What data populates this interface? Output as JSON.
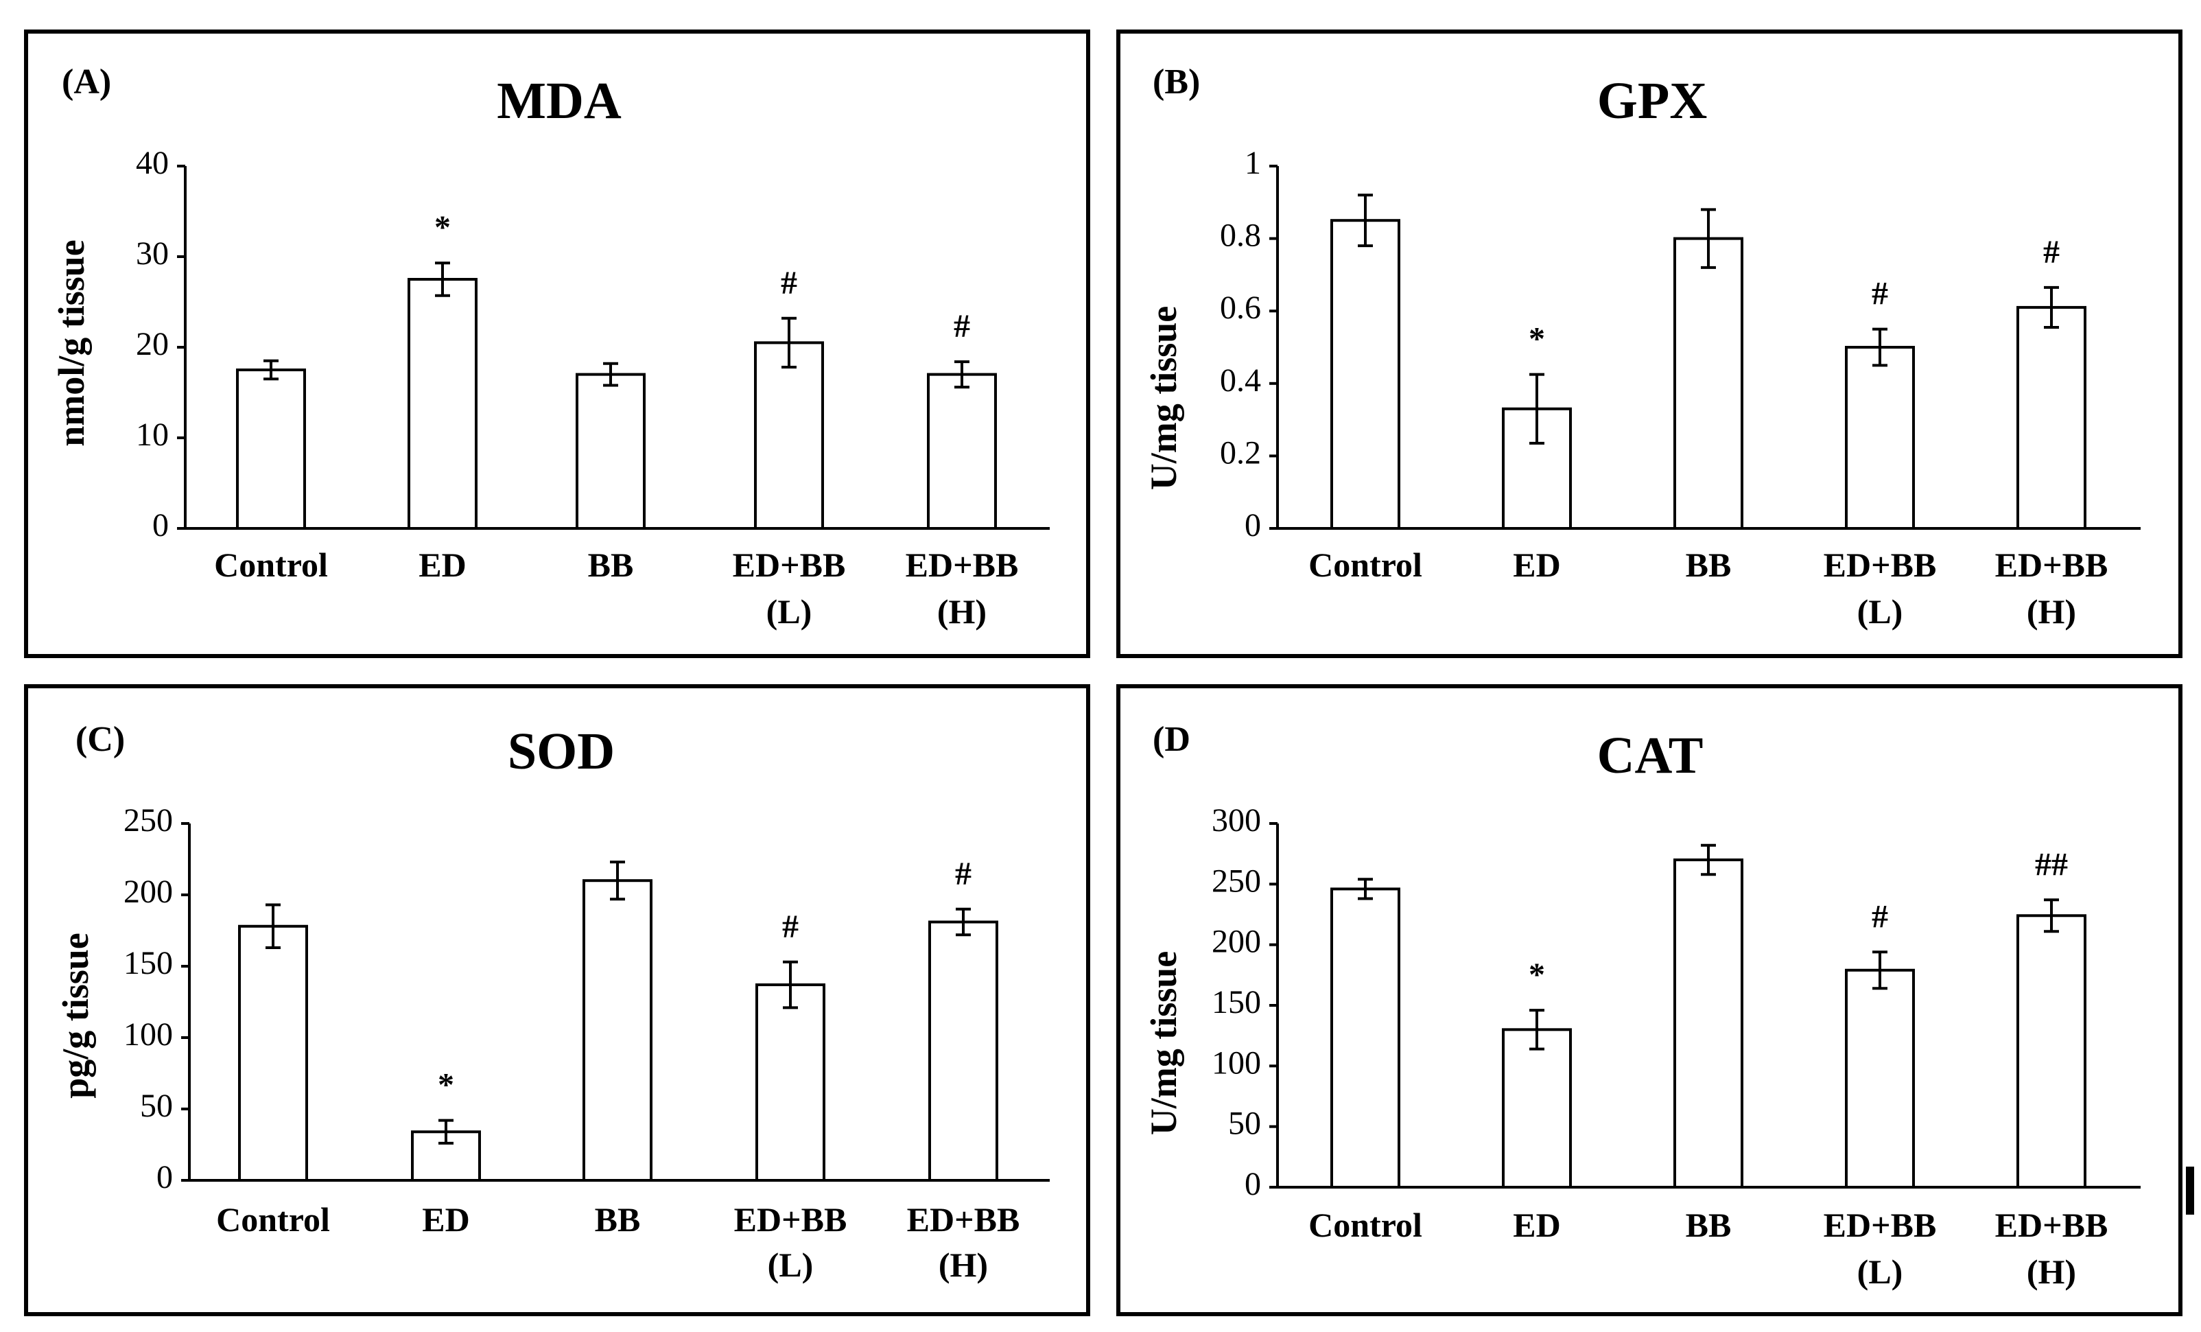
{
  "figure": {
    "panels": [
      "A",
      "B",
      "C",
      "D"
    ]
  },
  "chart_data": [
    {
      "type": "bar",
      "panel_label": "(A)",
      "title": "MDA",
      "ylabel": "nmol/g tissue",
      "xlabel": "",
      "ylim": [
        0,
        40
      ],
      "yticks": [
        "0",
        "10",
        "20",
        "30",
        "40"
      ],
      "categories": [
        [
          "Control"
        ],
        [
          "ED"
        ],
        [
          "BB"
        ],
        [
          "ED+BB",
          "(L)"
        ],
        [
          "ED+BB",
          "(H)"
        ]
      ],
      "values": [
        17.5,
        27.5,
        17,
        20.5,
        17
      ],
      "errors": [
        1,
        1.8,
        1.2,
        2.7,
        1.4
      ],
      "annotations": [
        "",
        "*",
        "",
        "#",
        "#"
      ]
    },
    {
      "type": "bar",
      "panel_label": "(B)",
      "title": "GPX",
      "ylabel": "U/mg tissue",
      "xlabel": "",
      "ylim": [
        0,
        1
      ],
      "yticks": [
        "0",
        "0.2",
        "0.4",
        "0.6",
        "0.8",
        "1"
      ],
      "categories": [
        [
          "Control"
        ],
        [
          "ED"
        ],
        [
          "BB"
        ],
        [
          "ED+BB",
          "(L)"
        ],
        [
          "ED+BB",
          "(H)"
        ]
      ],
      "values": [
        0.85,
        0.33,
        0.8,
        0.5,
        0.61
      ],
      "errors": [
        0.07,
        0.095,
        0.08,
        0.05,
        0.055
      ],
      "annotations": [
        "",
        "*",
        "",
        "#",
        "#"
      ]
    },
    {
      "type": "bar",
      "panel_label": "(C)",
      "title": "SOD",
      "ylabel": "pg/g tissue",
      "xlabel": "",
      "ylim": [
        0,
        250
      ],
      "yticks": [
        "0",
        "50",
        "100",
        "150",
        "200",
        "250"
      ],
      "categories": [
        [
          "Control"
        ],
        [
          "ED"
        ],
        [
          "BB"
        ],
        [
          "ED+BB",
          "(L)"
        ],
        [
          "ED+BB",
          "(H)"
        ]
      ],
      "values": [
        178,
        34,
        210,
        137,
        181
      ],
      "errors": [
        15,
        8,
        13,
        16,
        9
      ],
      "annotations": [
        "",
        "*",
        "",
        "#",
        "#"
      ]
    },
    {
      "type": "bar",
      "panel_label": "(D",
      "title": "CAT",
      "ylabel": "U/mg tissue",
      "xlabel": "",
      "ylim": [
        0,
        300
      ],
      "yticks": [
        "0",
        "50",
        "100",
        "150",
        "200",
        "250",
        "300"
      ],
      "categories": [
        [
          "Control"
        ],
        [
          "ED"
        ],
        [
          "BB"
        ],
        [
          "ED+BB",
          "(L)"
        ],
        [
          "ED+BB",
          "(H)"
        ]
      ],
      "values": [
        246,
        130,
        270,
        179,
        224
      ],
      "errors": [
        8,
        16,
        12,
        15,
        13
      ],
      "annotations": [
        "",
        "*",
        "",
        "#",
        "##"
      ]
    }
  ]
}
